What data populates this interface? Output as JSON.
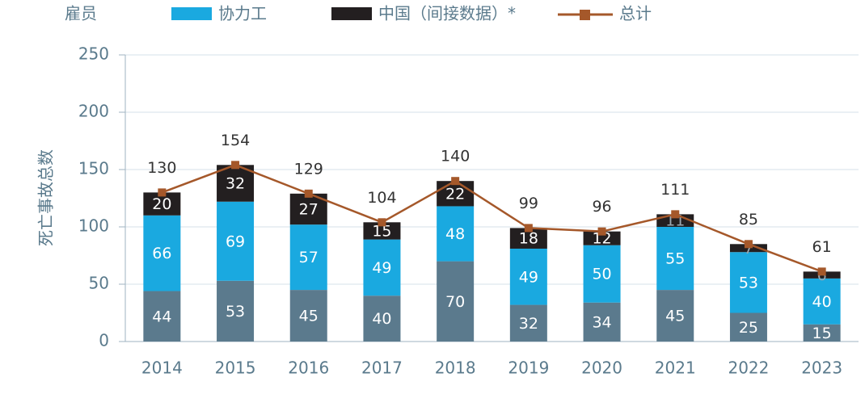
{
  "chart_data": {
    "type": "bar",
    "stacked": true,
    "y_label": "死亡事故总数",
    "categories": [
      "2014",
      "2015",
      "2016",
      "2017",
      "2018",
      "2019",
      "2020",
      "2021",
      "2022",
      "2023"
    ],
    "series": [
      {
        "name": "雇员",
        "color": "#5b7a8d",
        "values": [
          44,
          53,
          45,
          40,
          70,
          32,
          34,
          45,
          25,
          15
        ]
      },
      {
        "name": "协力工",
        "color": "#1aa9e0",
        "values": [
          66,
          69,
          57,
          49,
          48,
          49,
          50,
          55,
          53,
          40
        ]
      },
      {
        "name": "中国（间接数据）*",
        "color": "#231f20",
        "values": [
          20,
          32,
          27,
          15,
          22,
          18,
          12,
          11,
          7,
          6
        ]
      },
      {
        "name": "总计",
        "type": "line",
        "color": "#a5582a",
        "values": [
          130,
          154,
          129,
          104,
          140,
          99,
          96,
          111,
          85,
          61
        ]
      }
    ],
    "ylim": [
      0,
      250
    ],
    "yticks": [
      0,
      50,
      100,
      150,
      200,
      250
    ],
    "grid": true
  }
}
